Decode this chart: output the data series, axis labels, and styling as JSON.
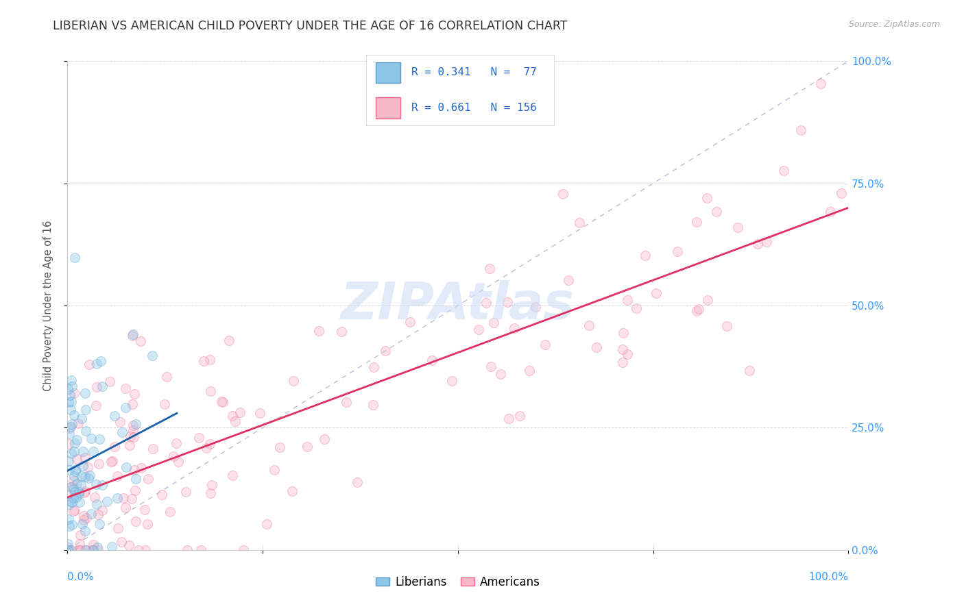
{
  "title": "LIBERIAN VS AMERICAN CHILD POVERTY UNDER THE AGE OF 16 CORRELATION CHART",
  "source": "Source: ZipAtlas.com",
  "ylabel": "Child Poverty Under the Age of 16",
  "xlim": [
    0,
    1
  ],
  "ylim": [
    0,
    1
  ],
  "xticks": [
    0,
    0.25,
    0.5,
    0.75,
    1.0
  ],
  "yticks": [
    0,
    0.25,
    0.5,
    0.75,
    1.0
  ],
  "xticklabels_ends": [
    "0.0%",
    "100.0%"
  ],
  "yticklabels": [
    "0.0%",
    "25.0%",
    "50.0%",
    "75.0%",
    "100.0%"
  ],
  "liberian_color": "#8ec6e8",
  "american_color": "#f7b8cc",
  "liberian_edge": "#5599cc",
  "american_edge": "#ee6688",
  "liberian_R": 0.341,
  "liberian_N": 77,
  "american_R": 0.661,
  "american_N": 156,
  "liberian_line_color": "#1a5faa",
  "american_line_color": "#e03060",
  "diagonal_color": "#bbbbdd",
  "background_color": "#ffffff",
  "title_fontsize": 12.5,
  "axis_label_fontsize": 10.5,
  "tick_label_color": "#3399ff",
  "watermark": "ZIPAtlas",
  "marker_size": 100,
  "marker_alpha": 0.4,
  "seed": 42
}
